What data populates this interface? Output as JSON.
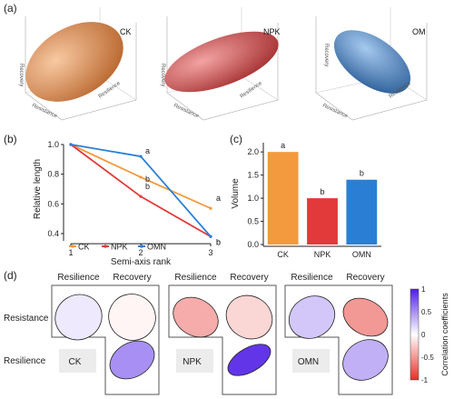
{
  "panel_letters": {
    "a": "(a)",
    "b": "(b)",
    "c": "(c)",
    "d": "(d)"
  },
  "ellipsoids": [
    {
      "label": "CK",
      "color": "#e58a45",
      "axes": [
        "Resistance",
        "Resilience",
        "Recovery"
      ]
    },
    {
      "label": "NPK",
      "color": "#cf4a4a",
      "axes": [
        "Resistance",
        "Resilience",
        "Recovery"
      ]
    },
    {
      "label": "OM",
      "color": "#3f79b8",
      "axes": [
        "Resistance",
        "Resilience",
        "Recovery"
      ]
    }
  ],
  "chart_data": [
    {
      "type": "line",
      "panel": "(b)",
      "xlabel": "Semi-axis rank",
      "ylabel": "Relative length",
      "x": [
        1,
        2,
        3
      ],
      "xticks": [
        "1",
        "2",
        "3"
      ],
      "yticks": [
        "0.4",
        "0.6",
        "0.8",
        "1.0"
      ],
      "ylim": [
        0.4,
        1.0
      ],
      "series": [
        {
          "name": "CK",
          "color": "#f39a3e",
          "values": [
            1.0,
            0.78,
            0.57
          ],
          "labels": [
            "",
            "b",
            "a"
          ]
        },
        {
          "name": "NPK",
          "color": "#e23a3a",
          "values": [
            1.0,
            0.65,
            0.38
          ],
          "labels": [
            "",
            "b",
            "b"
          ]
        },
        {
          "name": "OMN",
          "color": "#2a7fd4",
          "values": [
            1.0,
            0.92,
            0.38
          ],
          "labels": [
            "",
            "a",
            "b"
          ]
        }
      ],
      "legend_position": "bottom"
    },
    {
      "type": "bar",
      "panel": "(c)",
      "categories": [
        "CK",
        "NPK",
        "OMN"
      ],
      "values": [
        2.0,
        1.0,
        1.4
      ],
      "colors": [
        "#f39a3e",
        "#e23a3a",
        "#2a7fd4"
      ],
      "labels": [
        "a",
        "b",
        "b"
      ],
      "ylabel": "Volume",
      "ylim": [
        0,
        2.2
      ],
      "yticks": [
        "0.0",
        "0.5",
        "1.0",
        "1.5",
        "2.0"
      ]
    },
    {
      "type": "heatmap",
      "panel": "(d)",
      "col_labels": [
        "Resilience",
        "Recovery"
      ],
      "row_labels": [
        "Resistance",
        "Resilience"
      ],
      "groups": [
        {
          "name": "CK",
          "resistance_resilience": 0.1,
          "resistance_recovery": -0.05,
          "resilience_recovery": 0.5
        },
        {
          "name": "NPK",
          "resistance_resilience": -0.4,
          "resistance_recovery": -0.2,
          "resilience_recovery": 0.9
        },
        {
          "name": "OMN",
          "resistance_resilience": 0.25,
          "resistance_recovery": -0.5,
          "resilience_recovery": 0.35
        }
      ],
      "colorbar": {
        "label": "Correlation coefficients",
        "ticks": [
          "1",
          "0.5",
          "0",
          "-0.5",
          "-1"
        ]
      }
    }
  ]
}
